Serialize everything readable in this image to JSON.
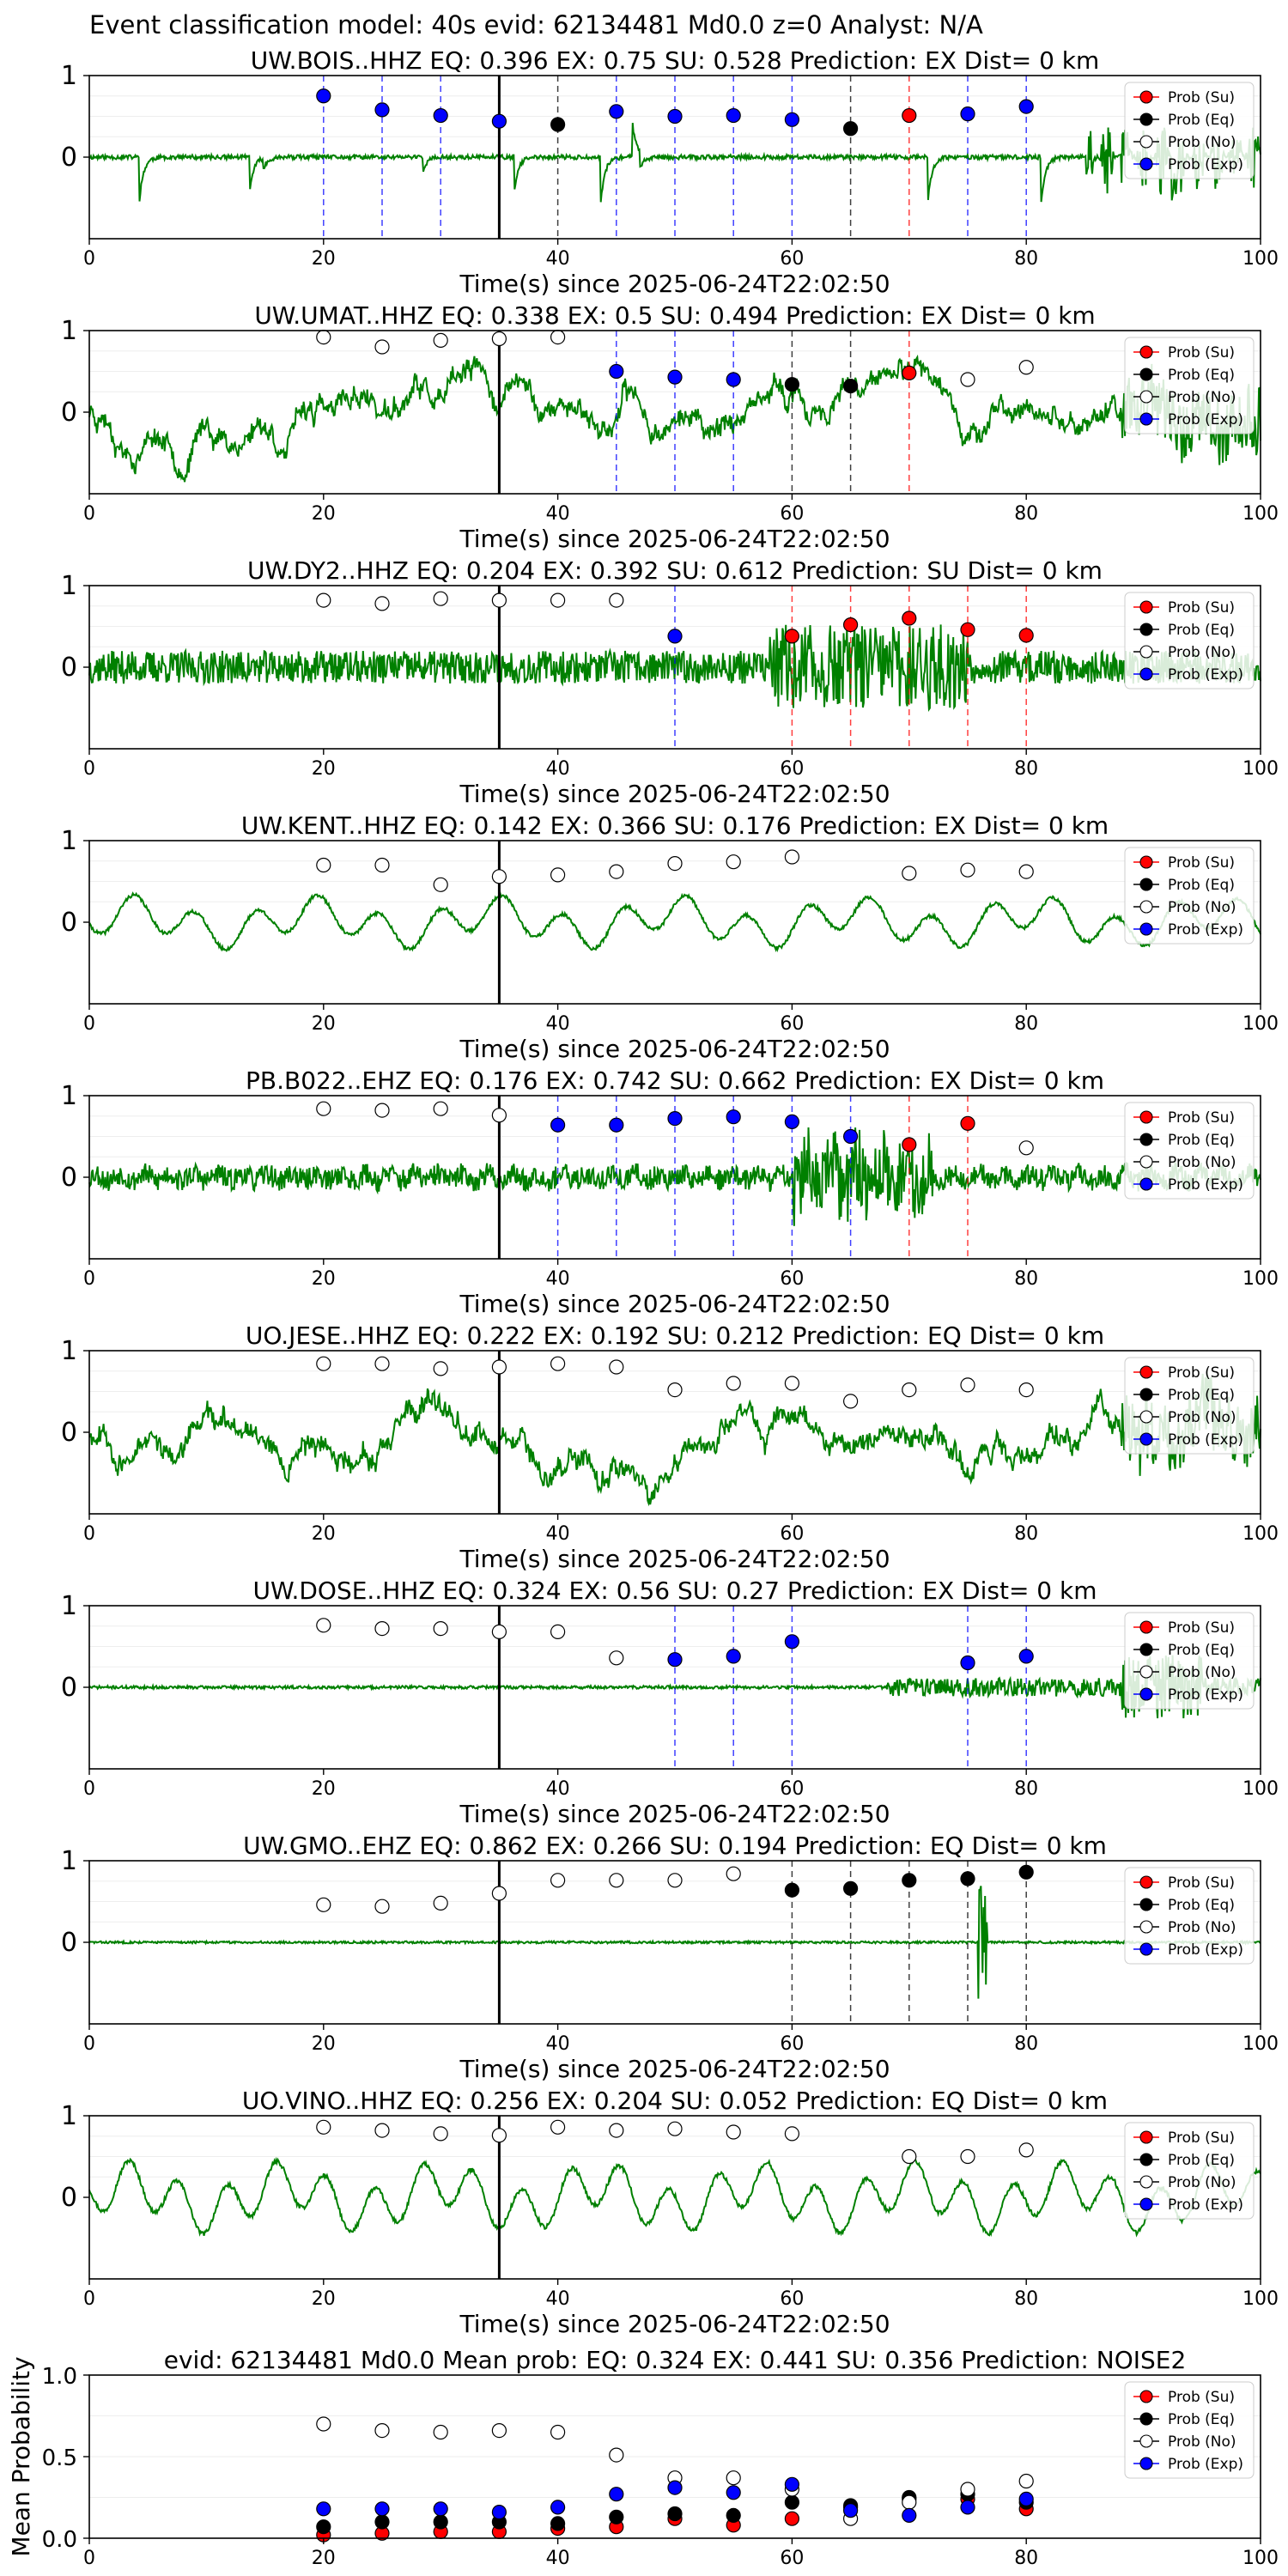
{
  "figure_title": "Event classification model: 40s evid: 62134481 Md0.0 z=0 Analyst: N/A",
  "legend": [
    "Prob (Su)",
    "Prob (Eq)",
    "Prob (No)",
    "Prob (Exp)"
  ],
  "colors": {
    "su": "#ff0000",
    "eq": "#000000",
    "no": "#ffffff",
    "exp": "#0000ff",
    "waveform": "#008000",
    "origin_line": "#000000"
  },
  "chart_data": [
    {
      "type": "scatter",
      "title": "UW.BOIS..HHZ   EQ: 0.396  EX: 0.75  SU: 0.528   Prediction: EX    Dist= 0 km",
      "xlabel": "Time(s) since 2025-06-24T22:02:50",
      "ylabel": "",
      "xlim": [
        0,
        100
      ],
      "ylim": [
        -1,
        1
      ],
      "x_ticks": [
        "0",
        "20",
        "40",
        "60",
        "80",
        "100"
      ],
      "y_ticks": [
        "0",
        "1"
      ],
      "origin_time": 35,
      "waveform": "spiky",
      "seed": 11,
      "points": [
        {
          "x": 20,
          "y": 0.75,
          "c": "exp"
        },
        {
          "x": 25,
          "y": 0.58,
          "c": "exp"
        },
        {
          "x": 30,
          "y": 0.51,
          "c": "exp"
        },
        {
          "x": 35,
          "y": 0.44,
          "c": "exp"
        },
        {
          "x": 40,
          "y": 0.4,
          "c": "eq"
        },
        {
          "x": 45,
          "y": 0.56,
          "c": "exp"
        },
        {
          "x": 50,
          "y": 0.5,
          "c": "exp"
        },
        {
          "x": 55,
          "y": 0.51,
          "c": "exp"
        },
        {
          "x": 60,
          "y": 0.46,
          "c": "exp"
        },
        {
          "x": 65,
          "y": 0.35,
          "c": "eq"
        },
        {
          "x": 70,
          "y": 0.51,
          "c": "su"
        },
        {
          "x": 75,
          "y": 0.53,
          "c": "exp"
        },
        {
          "x": 80,
          "y": 0.62,
          "c": "exp"
        }
      ]
    },
    {
      "type": "scatter",
      "title": "UW.UMAT..HHZ   EQ: 0.338  EX: 0.5  SU: 0.494   Prediction: EX    Dist= 0 km",
      "xlabel": "Time(s) since 2025-06-24T22:02:50",
      "ylabel": "",
      "xlim": [
        0,
        100
      ],
      "ylim": [
        -1,
        1
      ],
      "x_ticks": [
        "0",
        "20",
        "40",
        "60",
        "80",
        "100"
      ],
      "y_ticks": [
        "0",
        "1"
      ],
      "origin_time": 35,
      "waveform": "wavy",
      "seed": 23,
      "points": [
        {
          "x": 20,
          "y": 0.92,
          "c": "no"
        },
        {
          "x": 25,
          "y": 0.8,
          "c": "no"
        },
        {
          "x": 30,
          "y": 0.88,
          "c": "no"
        },
        {
          "x": 35,
          "y": 0.9,
          "c": "no"
        },
        {
          "x": 40,
          "y": 0.92,
          "c": "no"
        },
        {
          "x": 45,
          "y": 0.5,
          "c": "exp"
        },
        {
          "x": 50,
          "y": 0.43,
          "c": "exp"
        },
        {
          "x": 55,
          "y": 0.4,
          "c": "exp"
        },
        {
          "x": 60,
          "y": 0.34,
          "c": "eq"
        },
        {
          "x": 65,
          "y": 0.32,
          "c": "eq"
        },
        {
          "x": 70,
          "y": 0.48,
          "c": "su"
        },
        {
          "x": 75,
          "y": 0.4,
          "c": "no"
        },
        {
          "x": 80,
          "y": 0.55,
          "c": "no"
        }
      ]
    },
    {
      "type": "scatter",
      "title": "UW.DY2..HHZ   EQ: 0.204  EX: 0.392  SU: 0.612   Prediction: SU    Dist= 0 km",
      "xlabel": "Time(s) since 2025-06-24T22:02:50",
      "ylabel": "",
      "xlim": [
        0,
        100
      ],
      "ylim": [
        -1,
        1
      ],
      "x_ticks": [
        "0",
        "20",
        "40",
        "60",
        "80",
        "100"
      ],
      "y_ticks": [
        "0",
        "1"
      ],
      "origin_time": 35,
      "waveform": "noisy",
      "seed": 37,
      "points": [
        {
          "x": 20,
          "y": 0.82,
          "c": "no"
        },
        {
          "x": 25,
          "y": 0.78,
          "c": "no"
        },
        {
          "x": 30,
          "y": 0.84,
          "c": "no"
        },
        {
          "x": 35,
          "y": 0.82,
          "c": "no"
        },
        {
          "x": 40,
          "y": 0.82,
          "c": "no"
        },
        {
          "x": 45,
          "y": 0.82,
          "c": "no"
        },
        {
          "x": 50,
          "y": 0.38,
          "c": "exp"
        },
        {
          "x": 60,
          "y": 0.38,
          "c": "su"
        },
        {
          "x": 65,
          "y": 0.52,
          "c": "su"
        },
        {
          "x": 70,
          "y": 0.6,
          "c": "su"
        },
        {
          "x": 75,
          "y": 0.46,
          "c": "su"
        },
        {
          "x": 80,
          "y": 0.39,
          "c": "su"
        }
      ]
    },
    {
      "type": "scatter",
      "title": "UW.KENT..HHZ   EQ: 0.142  EX: 0.366  SU: 0.176   Prediction: EX    Dist= 0 km",
      "xlabel": "Time(s) since 2025-06-24T22:02:50",
      "ylabel": "",
      "xlim": [
        0,
        100
      ],
      "ylim": [
        -1,
        1
      ],
      "x_ticks": [
        "0",
        "20",
        "40",
        "60",
        "80",
        "100"
      ],
      "y_ticks": [
        "0",
        "1"
      ],
      "origin_time": 35,
      "waveform": "smooth",
      "seed": 41,
      "points": [
        {
          "x": 20,
          "y": 0.7,
          "c": "no"
        },
        {
          "x": 25,
          "y": 0.7,
          "c": "no"
        },
        {
          "x": 30,
          "y": 0.46,
          "c": "no"
        },
        {
          "x": 35,
          "y": 0.56,
          "c": "no"
        },
        {
          "x": 40,
          "y": 0.58,
          "c": "no"
        },
        {
          "x": 45,
          "y": 0.62,
          "c": "no"
        },
        {
          "x": 50,
          "y": 0.72,
          "c": "no"
        },
        {
          "x": 55,
          "y": 0.74,
          "c": "no"
        },
        {
          "x": 60,
          "y": 0.8,
          "c": "no"
        },
        {
          "x": 70,
          "y": 0.6,
          "c": "no"
        },
        {
          "x": 75,
          "y": 0.64,
          "c": "no"
        },
        {
          "x": 80,
          "y": 0.62,
          "c": "no"
        }
      ]
    },
    {
      "type": "scatter",
      "title": "PB.B022..EHZ   EQ: 0.176  EX: 0.742  SU: 0.662   Prediction: EX    Dist= 0 km",
      "xlabel": "Time(s) since 2025-06-24T22:02:50",
      "ylabel": "",
      "xlim": [
        0,
        100
      ],
      "ylim": [
        -1,
        1
      ],
      "x_ticks": [
        "0",
        "20",
        "40",
        "60",
        "80",
        "100"
      ],
      "y_ticks": [
        "0",
        "1"
      ],
      "origin_time": 35,
      "waveform": "noisy_burst",
      "seed": 53,
      "points": [
        {
          "x": 20,
          "y": 0.84,
          "c": "no"
        },
        {
          "x": 25,
          "y": 0.82,
          "c": "no"
        },
        {
          "x": 30,
          "y": 0.84,
          "c": "no"
        },
        {
          "x": 35,
          "y": 0.76,
          "c": "no"
        },
        {
          "x": 40,
          "y": 0.64,
          "c": "exp"
        },
        {
          "x": 45,
          "y": 0.64,
          "c": "exp"
        },
        {
          "x": 50,
          "y": 0.72,
          "c": "exp"
        },
        {
          "x": 55,
          "y": 0.74,
          "c": "exp"
        },
        {
          "x": 60,
          "y": 0.68,
          "c": "exp"
        },
        {
          "x": 65,
          "y": 0.5,
          "c": "exp"
        },
        {
          "x": 70,
          "y": 0.4,
          "c": "su"
        },
        {
          "x": 75,
          "y": 0.66,
          "c": "su"
        },
        {
          "x": 80,
          "y": 0.36,
          "c": "no"
        }
      ]
    },
    {
      "type": "scatter",
      "title": "UO.JESE..HHZ   EQ: 0.222  EX: 0.192  SU: 0.212   Prediction: EQ    Dist= 0 km",
      "xlabel": "Time(s) since 2025-06-24T22:02:50",
      "ylabel": "",
      "xlim": [
        0,
        100
      ],
      "ylim": [
        -1,
        1
      ],
      "x_ticks": [
        "0",
        "20",
        "40",
        "60",
        "80",
        "100"
      ],
      "y_ticks": [
        "0",
        "1"
      ],
      "origin_time": 35,
      "waveform": "wavy",
      "seed": 67,
      "points": [
        {
          "x": 20,
          "y": 0.84,
          "c": "no"
        },
        {
          "x": 25,
          "y": 0.84,
          "c": "no"
        },
        {
          "x": 30,
          "y": 0.78,
          "c": "no"
        },
        {
          "x": 35,
          "y": 0.8,
          "c": "no"
        },
        {
          "x": 40,
          "y": 0.84,
          "c": "no"
        },
        {
          "x": 45,
          "y": 0.8,
          "c": "no"
        },
        {
          "x": 50,
          "y": 0.52,
          "c": "no"
        },
        {
          "x": 55,
          "y": 0.6,
          "c": "no"
        },
        {
          "x": 60,
          "y": 0.6,
          "c": "no"
        },
        {
          "x": 65,
          "y": 0.38,
          "c": "no"
        },
        {
          "x": 70,
          "y": 0.52,
          "c": "no"
        },
        {
          "x": 75,
          "y": 0.58,
          "c": "no"
        },
        {
          "x": 80,
          "y": 0.52,
          "c": "no"
        }
      ]
    },
    {
      "type": "scatter",
      "title": "UW.DOSE..HHZ   EQ: 0.324  EX: 0.56  SU: 0.27   Prediction: EX    Dist= 0 km",
      "xlabel": "Time(s) since 2025-06-24T22:02:50",
      "ylabel": "",
      "xlim": [
        0,
        100
      ],
      "ylim": [
        -1,
        1
      ],
      "x_ticks": [
        "0",
        "20",
        "40",
        "60",
        "80",
        "100"
      ],
      "y_ticks": [
        "0",
        "1"
      ],
      "origin_time": 35,
      "waveform": "quiet_late",
      "seed": 71,
      "points": [
        {
          "x": 20,
          "y": 0.76,
          "c": "no"
        },
        {
          "x": 25,
          "y": 0.72,
          "c": "no"
        },
        {
          "x": 30,
          "y": 0.72,
          "c": "no"
        },
        {
          "x": 35,
          "y": 0.68,
          "c": "no"
        },
        {
          "x": 40,
          "y": 0.68,
          "c": "no"
        },
        {
          "x": 45,
          "y": 0.36,
          "c": "no"
        },
        {
          "x": 50,
          "y": 0.34,
          "c": "exp"
        },
        {
          "x": 55,
          "y": 0.38,
          "c": "exp"
        },
        {
          "x": 60,
          "y": 0.56,
          "c": "exp"
        },
        {
          "x": 75,
          "y": 0.3,
          "c": "exp"
        },
        {
          "x": 80,
          "y": 0.38,
          "c": "exp"
        }
      ]
    },
    {
      "type": "scatter",
      "title": "UW.GMO..EHZ   EQ: 0.862  EX: 0.266  SU: 0.194   Prediction: EQ    Dist= 0 km",
      "xlabel": "Time(s) since 2025-06-24T22:02:50",
      "ylabel": "",
      "xlim": [
        0,
        100
      ],
      "ylim": [
        -1,
        1
      ],
      "x_ticks": [
        "0",
        "20",
        "40",
        "60",
        "80",
        "100"
      ],
      "y_ticks": [
        "0",
        "1"
      ],
      "origin_time": 35,
      "waveform": "flat_spike",
      "seed": 83,
      "points": [
        {
          "x": 20,
          "y": 0.46,
          "c": "no"
        },
        {
          "x": 25,
          "y": 0.44,
          "c": "no"
        },
        {
          "x": 30,
          "y": 0.48,
          "c": "no"
        },
        {
          "x": 35,
          "y": 0.6,
          "c": "no"
        },
        {
          "x": 40,
          "y": 0.76,
          "c": "no"
        },
        {
          "x": 45,
          "y": 0.76,
          "c": "no"
        },
        {
          "x": 50,
          "y": 0.76,
          "c": "no"
        },
        {
          "x": 55,
          "y": 0.84,
          "c": "no"
        },
        {
          "x": 60,
          "y": 0.64,
          "c": "eq"
        },
        {
          "x": 65,
          "y": 0.66,
          "c": "eq"
        },
        {
          "x": 70,
          "y": 0.76,
          "c": "eq"
        },
        {
          "x": 75,
          "y": 0.78,
          "c": "eq"
        },
        {
          "x": 80,
          "y": 0.86,
          "c": "eq"
        }
      ]
    },
    {
      "type": "scatter",
      "title": "UO.VINO..HHZ   EQ: 0.256  EX: 0.204  SU: 0.052   Prediction: EQ    Dist= 0 km",
      "xlabel": "Time(s) since 2025-06-24T22:02:50",
      "ylabel": "",
      "xlim": [
        0,
        100
      ],
      "ylim": [
        -1,
        1
      ],
      "x_ticks": [
        "0",
        "20",
        "40",
        "60",
        "80",
        "100"
      ],
      "y_ticks": [
        "0",
        "1"
      ],
      "origin_time": 35,
      "waveform": "smooth_big",
      "seed": 97,
      "points": [
        {
          "x": 20,
          "y": 0.86,
          "c": "no"
        },
        {
          "x": 25,
          "y": 0.82,
          "c": "no"
        },
        {
          "x": 30,
          "y": 0.78,
          "c": "no"
        },
        {
          "x": 35,
          "y": 0.76,
          "c": "no"
        },
        {
          "x": 40,
          "y": 0.86,
          "c": "no"
        },
        {
          "x": 45,
          "y": 0.82,
          "c": "no"
        },
        {
          "x": 50,
          "y": 0.84,
          "c": "no"
        },
        {
          "x": 55,
          "y": 0.8,
          "c": "no"
        },
        {
          "x": 60,
          "y": 0.78,
          "c": "no"
        },
        {
          "x": 70,
          "y": 0.5,
          "c": "no"
        },
        {
          "x": 75,
          "y": 0.5,
          "c": "no"
        },
        {
          "x": 80,
          "y": 0.58,
          "c": "no"
        }
      ]
    },
    {
      "type": "scatter",
      "title": "evid: 62134481  Md0.0   Mean prob:    EQ: 0.324  EX: 0.441  SU: 0.356   Prediction: NOISE2",
      "xlabel": "",
      "ylabel": "Mean Probability",
      "xlim": [
        0,
        100
      ],
      "ylim": [
        0,
        1
      ],
      "x_ticks": [
        "0",
        "20",
        "40",
        "60",
        "80",
        "100"
      ],
      "y_ticks": [
        "0.0",
        "0.5",
        "1.0"
      ],
      "summary": true,
      "series": [
        {
          "name": "Prob (Su)",
          "c": "su",
          "x": [
            20,
            25,
            30,
            35,
            40,
            45,
            50,
            55,
            60,
            65,
            70,
            75,
            80
          ],
          "values": [
            0.02,
            0.03,
            0.04,
            0.04,
            0.06,
            0.07,
            0.12,
            0.08,
            0.12,
            0.19,
            0.24,
            0.24,
            0.18
          ]
        },
        {
          "name": "Prob (Eq)",
          "c": "eq",
          "x": [
            20,
            25,
            30,
            35,
            40,
            45,
            50,
            55,
            60,
            65,
            70,
            75,
            80
          ],
          "values": [
            0.07,
            0.1,
            0.1,
            0.1,
            0.09,
            0.13,
            0.15,
            0.14,
            0.22,
            0.2,
            0.25,
            0.27,
            0.22
          ]
        },
        {
          "name": "Prob (No)",
          "c": "no",
          "x": [
            20,
            25,
            30,
            35,
            40,
            45,
            50,
            55,
            60,
            65,
            70,
            75,
            80
          ],
          "values": [
            0.7,
            0.66,
            0.65,
            0.66,
            0.65,
            0.51,
            0.37,
            0.37,
            0.3,
            0.12,
            0.22,
            0.3,
            0.35
          ]
        },
        {
          "name": "Prob (Exp)",
          "c": "exp",
          "x": [
            20,
            25,
            30,
            35,
            40,
            45,
            50,
            55,
            60,
            65,
            70,
            75,
            80
          ],
          "values": [
            0.18,
            0.18,
            0.18,
            0.16,
            0.19,
            0.27,
            0.31,
            0.28,
            0.33,
            0.17,
            0.14,
            0.19,
            0.24
          ]
        }
      ]
    }
  ]
}
